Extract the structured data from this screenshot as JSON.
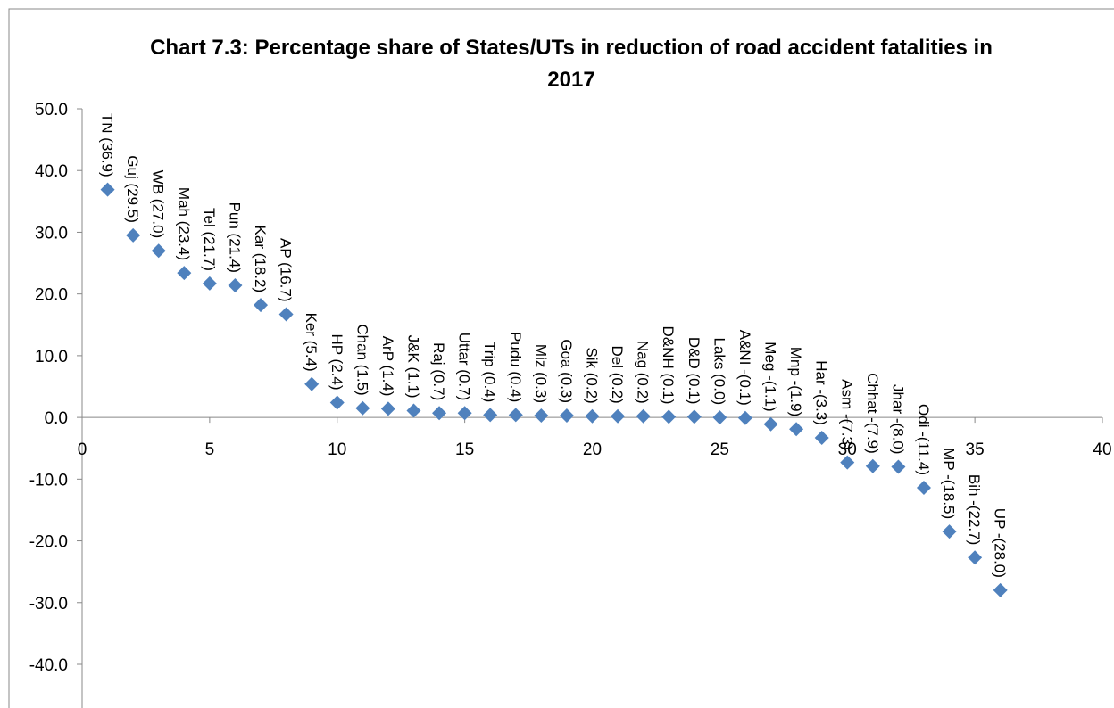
{
  "chart_data": {
    "type": "scatter",
    "title": "Chart 7.3: Percentage share of States/UTs in reduction of road accident fatalities in 2017",
    "x": [
      1,
      2,
      3,
      4,
      5,
      6,
      7,
      8,
      9,
      10,
      11,
      12,
      13,
      14,
      15,
      16,
      17,
      18,
      19,
      20,
      21,
      22,
      23,
      24,
      25,
      26,
      27,
      28,
      29,
      30,
      31,
      32,
      33,
      34,
      35,
      36
    ],
    "values": [
      36.9,
      29.5,
      27.0,
      23.4,
      21.7,
      21.4,
      18.2,
      16.7,
      5.4,
      2.4,
      1.5,
      1.4,
      1.1,
      0.7,
      0.7,
      0.4,
      0.4,
      0.3,
      0.3,
      0.2,
      0.2,
      0.2,
      0.1,
      0.1,
      0.0,
      -0.1,
      -1.1,
      -1.9,
      -3.3,
      -7.3,
      -7.9,
      -8.0,
      -11.4,
      -18.5,
      -22.7,
      -28.0
    ],
    "value_labels": [
      "TN (36.9)",
      "Guj (29.5)",
      "WB (27.0)",
      "Mah (23.4)",
      "Tel (21.7)",
      "Pun (21.4)",
      "Kar (18.2)",
      "AP (16.7)",
      "Ker (5.4)",
      "HP (2.4)",
      "Chan (1.5)",
      "ArP (1.4)",
      "J&K (1.1)",
      "Raj (0.7)",
      "Uttar (0.7)",
      "Trip (0.4)",
      "Pudu (0.4)",
      "Miz (0.3)",
      "Goa (0.3)",
      "Sik (0.2)",
      "Del (0.2)",
      "Nag (0.2)",
      "D&NH (0.1)",
      "D&D (0.1)",
      "Laks (0.0)",
      "A&NI -(0.1)",
      "Meg -(1.1)",
      "Mnp -(1.9)",
      "Har -(3.3)",
      "Asm -(7.3)",
      "Chhat -(7.9)",
      "Jhar -(8.0)",
      "Odi -(11.4)",
      "MP -(18.5)",
      "Bih -(22.7)",
      "UP -(28.0)"
    ],
    "color": "#4f81bd",
    "xlim": [
      0,
      40
    ],
    "xticks": [
      0,
      5,
      10,
      15,
      20,
      25,
      30,
      35,
      40
    ],
    "ylim": [
      -40,
      50
    ],
    "yticks": [
      {
        "value": 50,
        "label": "50.0"
      },
      {
        "value": 40,
        "label": "40.0"
      },
      {
        "value": 30,
        "label": "30.0"
      },
      {
        "value": 20,
        "label": "20.0"
      },
      {
        "value": 10,
        "label": "10.0"
      },
      {
        "value": 0,
        "label": "0.0"
      },
      {
        "value": -10,
        "label": "-10.0"
      },
      {
        "value": -20,
        "label": "-20.0"
      },
      {
        "value": -30,
        "label": "-30.0"
      },
      {
        "value": -40,
        "label": "-40.0"
      }
    ]
  }
}
